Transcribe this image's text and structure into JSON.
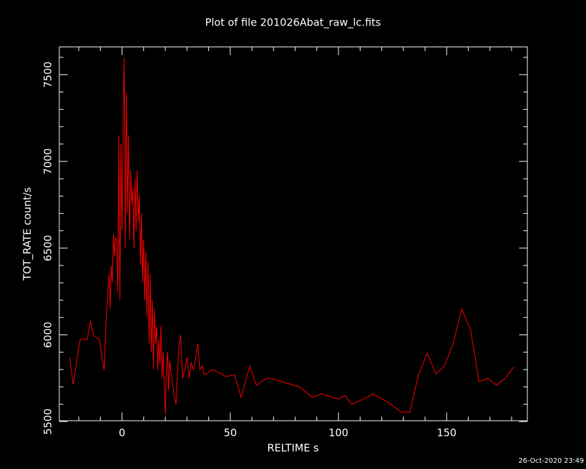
{
  "chart_data": {
    "type": "line",
    "title": "Plot of file 201026Abat_raw_lc.fits",
    "x_label": "RELTIME  s",
    "y_label": "TOT_RATE  count/s",
    "timestamp": "26-Oct-2020 23:49",
    "xlim": [
      -29,
      187.3
    ],
    "ylim": [
      5505,
      7660
    ],
    "xticks": [
      0,
      50,
      100,
      150
    ],
    "yticks": [
      5500,
      6000,
      6500,
      7000,
      7500
    ],
    "xminorticks": [
      -20,
      -10,
      10,
      20,
      30,
      40,
      60,
      70,
      80,
      90,
      110,
      120,
      130,
      140,
      160,
      170,
      180
    ],
    "yminorticks": [
      5600,
      5700,
      5800,
      5900,
      6100,
      6200,
      6300,
      6400,
      6600,
      6700,
      6800,
      6900,
      7100,
      7200,
      7300,
      7400,
      7600
    ],
    "series": [
      {
        "color": "#ff0000",
        "x": [
          -24.2,
          -22.6,
          -19.4,
          -17.5,
          -16.2,
          -14.6,
          -13.1,
          -10.5,
          -8.3,
          -7.3,
          -6,
          -5.5,
          -5,
          -4.5,
          -4,
          -3.5,
          -3,
          -2.5,
          -2,
          -1.5,
          -1,
          -0.5,
          0,
          0.5,
          1,
          1.5,
          2,
          2.5,
          3,
          3.5,
          4,
          4.5,
          5,
          5.5,
          6,
          6.5,
          7,
          7.5,
          8,
          8.5,
          9,
          9.5,
          10,
          10.5,
          11,
          11.5,
          12,
          12.5,
          13,
          13.5,
          14,
          14.5,
          15,
          15.5,
          16,
          16.5,
          17,
          17.5,
          18,
          18.5,
          19,
          19.5,
          20,
          20.5,
          21,
          21.5,
          22,
          23,
          24,
          25,
          26,
          27,
          28,
          29,
          30,
          31,
          32,
          33,
          34,
          35,
          36,
          37,
          38,
          42,
          48,
          52,
          55,
          59,
          62,
          67,
          70,
          82,
          88,
          92,
          100,
          103,
          106,
          110,
          116,
          123,
          129,
          133,
          137,
          141,
          145,
          149,
          153,
          157,
          161,
          165,
          169,
          173,
          177,
          181
        ],
        "values": [
          5869,
          5714,
          5972,
          5976,
          5972,
          6079,
          5996,
          5972,
          5794,
          6103,
          6350,
          6150,
          6400,
          6300,
          6580,
          6450,
          6560,
          6550,
          6250,
          7150,
          6200,
          7100,
          6600,
          7200,
          7600,
          6500,
          7400,
          6700,
          7150,
          6550,
          6950,
          6750,
          6850,
          6500,
          6900,
          6600,
          6950,
          6650,
          6800,
          6400,
          6700,
          6300,
          6550,
          6200,
          6480,
          6100,
          6420,
          5950,
          6350,
          5900,
          6200,
          5800,
          6150,
          5950,
          6050,
          5800,
          5970,
          5830,
          6050,
          5750,
          5900,
          5700,
          5540,
          5800,
          5900,
          5680,
          5850,
          5750,
          5650,
          5600,
          5900,
          6000,
          5750,
          5800,
          5870,
          5750,
          5840,
          5800,
          5860,
          5950,
          5800,
          5820,
          5770,
          5800,
          5760,
          5770,
          5640,
          5820,
          5710,
          5750,
          5745,
          5700,
          5640,
          5660,
          5630,
          5650,
          5600,
          5620,
          5660,
          5610,
          5555,
          5555,
          5770,
          5895,
          5775,
          5820,
          5950,
          6150,
          6030,
          5730,
          5750,
          5710,
          5750,
          5815
        ]
      }
    ]
  }
}
